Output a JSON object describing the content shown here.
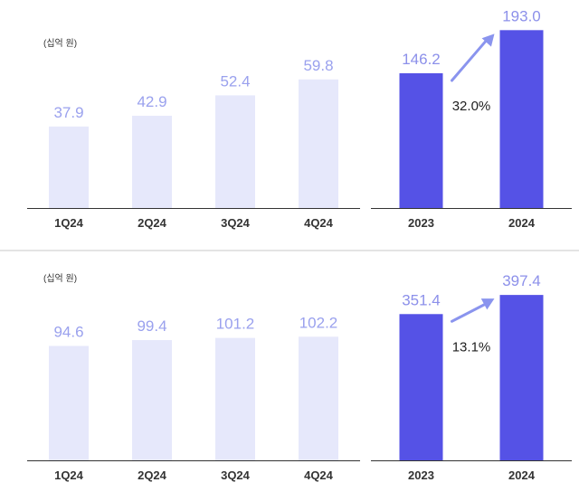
{
  "colors": {
    "quarter_bar": "#e6e8fb",
    "quarter_label": "#9aa1ee",
    "annual_bar": "#5552e6",
    "annual_label": "#8c90ea",
    "arrow": "#8a94ee",
    "axis": "#333333",
    "separator": "#d4d4d4"
  },
  "chart_data": [
    {
      "type": "bar",
      "unit_label": "(십억 원)",
      "categories": [
        "1Q24",
        "2Q24",
        "3Q24",
        "4Q24"
      ],
      "values": [
        37.9,
        42.9,
        52.4,
        59.8
      ],
      "value_labels": [
        "37.9",
        "42.9",
        "52.4",
        "59.8"
      ],
      "ylim": [
        0,
        90
      ]
    },
    {
      "type": "bar",
      "categories": [
        "2023",
        "2024"
      ],
      "values": [
        146.2,
        193.0
      ],
      "value_labels": [
        "146.2",
        "193.0"
      ],
      "growth_label": "32.0%",
      "ylim": [
        0,
        210
      ]
    },
    {
      "type": "bar",
      "unit_label": "(십억 원)",
      "categories": [
        "1Q24",
        "2Q24",
        "3Q24",
        "4Q24"
      ],
      "values": [
        94.6,
        99.4,
        101.2,
        102.2
      ],
      "value_labels": [
        "94.6",
        "99.4",
        "101.2",
        "102.2"
      ],
      "ylim": [
        0,
        160
      ]
    },
    {
      "type": "bar",
      "categories": [
        "2023",
        "2024"
      ],
      "values": [
        351.4,
        397.4
      ],
      "value_labels": [
        "351.4",
        "397.4"
      ],
      "growth_label": "13.1%",
      "ylim": [
        0,
        465
      ]
    }
  ]
}
